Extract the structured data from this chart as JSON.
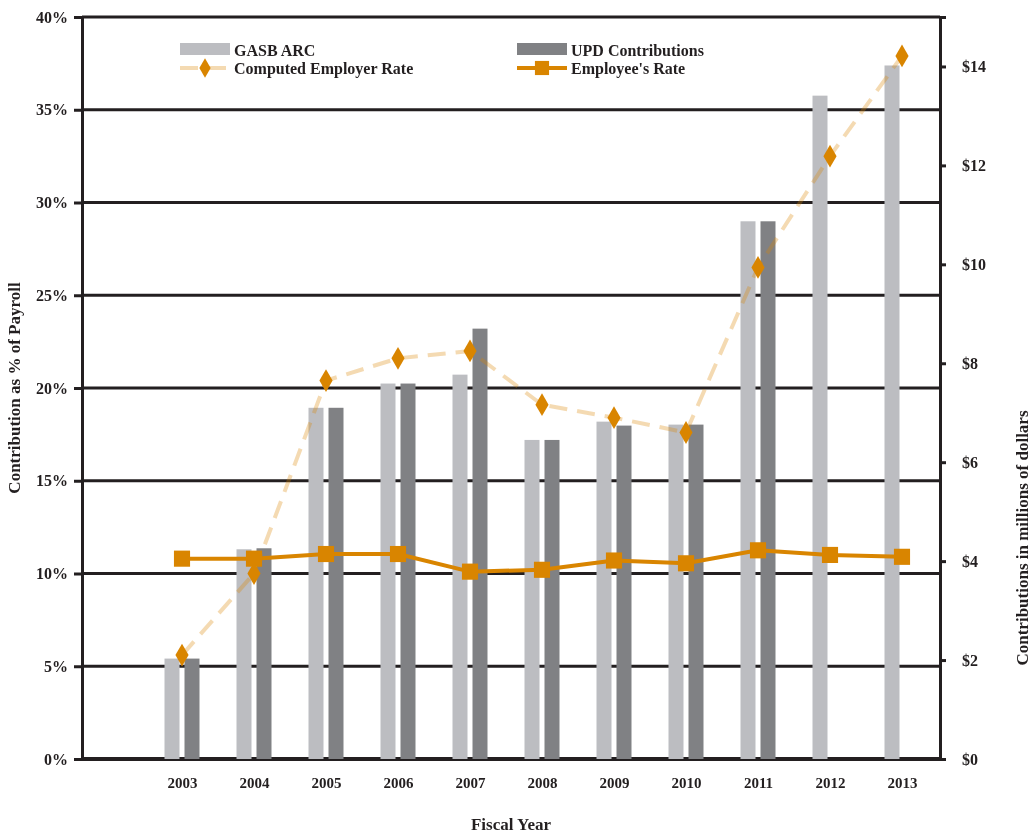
{
  "chart_data": {
    "type": "bar",
    "xlabel": "Fiscal Year",
    "ylabel": "Contribution as % of Payroll",
    "y2label": "Contributions in millions of dollars",
    "categories": [
      "2003",
      "2004",
      "2005",
      "2006",
      "2007",
      "2008",
      "2009",
      "2010",
      "2011",
      "2012",
      "2013"
    ],
    "series": [
      {
        "name": "GASB ARC",
        "axis": "y2",
        "color": "#bcbdc1",
        "values": [
          2.03,
          4.24,
          7.1,
          7.59,
          7.77,
          6.45,
          6.82,
          6.76,
          10.87,
          13.41,
          14.02
        ]
      },
      {
        "name": "UPD Contributions",
        "axis": "y2",
        "color": "#808184",
        "values": [
          2.03,
          4.26,
          7.1,
          7.59,
          8.7,
          6.45,
          6.74,
          6.76,
          10.87,
          null,
          null
        ]
      },
      {
        "name": "Computed Employer Rate",
        "type": "line",
        "color": "#d98500",
        "marker": "diamond",
        "line_style": "dashed",
        "values": [
          5.6,
          10.0,
          20.4,
          21.6,
          22.0,
          19.1,
          18.4,
          17.6,
          26.5,
          32.5,
          37.9
        ]
      },
      {
        "name": "Employee's Rate",
        "type": "line",
        "color": "#d98500",
        "marker": "square",
        "line_style": "solid",
        "values": [
          10.8,
          10.8,
          11.05,
          11.05,
          10.1,
          10.2,
          10.7,
          10.55,
          11.25,
          11.0,
          10.9
        ]
      }
    ],
    "ylim": [
      0,
      40
    ],
    "yticks": [
      {
        "value": 0,
        "label": "0%"
      },
      {
        "value": 5,
        "label": "5%"
      },
      {
        "value": 10,
        "label": "10%"
      },
      {
        "value": 15,
        "label": "15%"
      },
      {
        "value": 20,
        "label": "20%"
      },
      {
        "value": 25,
        "label": "25%"
      },
      {
        "value": 30,
        "label": "30%"
      },
      {
        "value": 35,
        "label": "35%"
      },
      {
        "value": 40,
        "label": "40%"
      }
    ],
    "y2lim": [
      0,
      15
    ],
    "y2ticks": [
      {
        "value": 0,
        "label": "$0"
      },
      {
        "value": 2,
        "label": "$2"
      },
      {
        "value": 4,
        "label": "$4"
      },
      {
        "value": 6,
        "label": "$6"
      },
      {
        "value": 8,
        "label": "$8"
      },
      {
        "value": 10,
        "label": "$10"
      },
      {
        "value": 12,
        "label": "$12"
      },
      {
        "value": 14,
        "label": "$14"
      }
    ],
    "grid": "y",
    "legend": "top"
  }
}
